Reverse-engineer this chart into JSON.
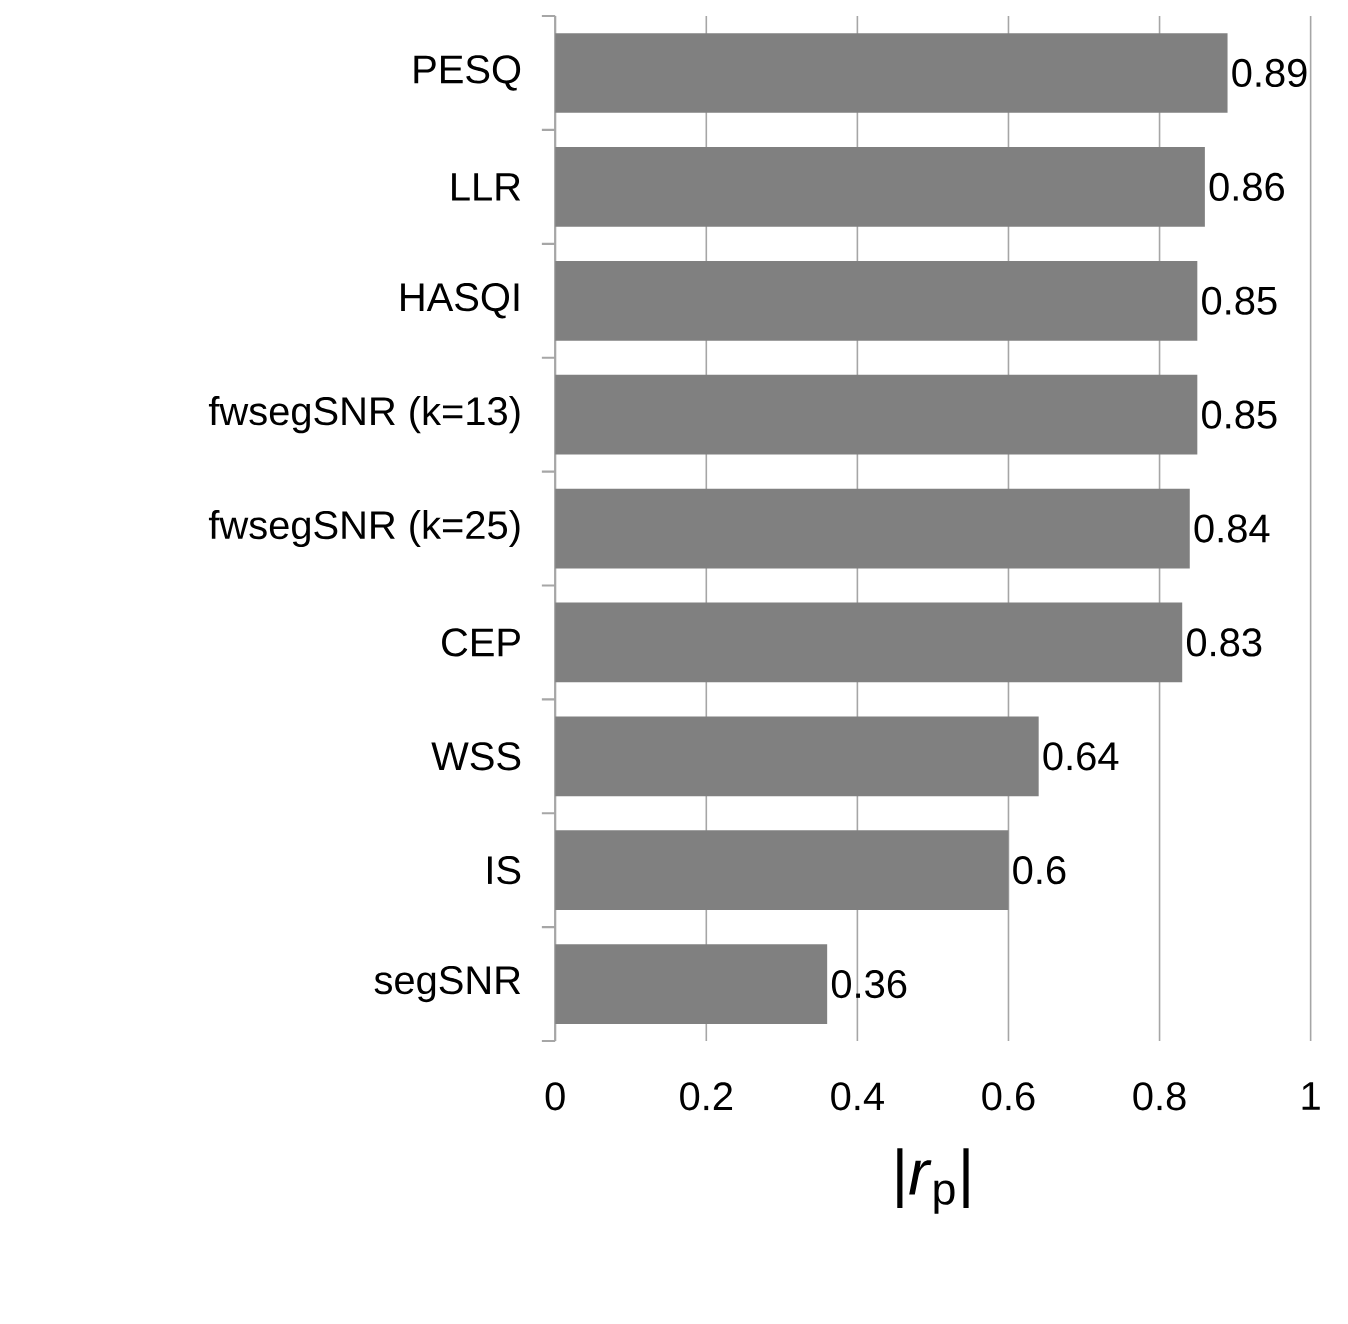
{
  "chart_data": {
    "type": "bar",
    "orientation": "horizontal",
    "xlabel": "|*r*$_{p}$|",
    "categories": [
      "PESQ",
      "LLR",
      "HASQI",
      "fwsegSNR (k=13)",
      "fwsegSNR (k=25)",
      "CEP",
      "WSS",
      "IS",
      "segSNR"
    ],
    "values": [
      0.89,
      0.86,
      0.85,
      0.85,
      0.84,
      0.83,
      0.64,
      0.6,
      0.36
    ],
    "color": "#808080",
    "xlim": [
      0,
      1
    ],
    "xticks": [
      0,
      0.2,
      0.4,
      0.6,
      0.8,
      1
    ],
    "grid": "x",
    "data_labels": true
  }
}
